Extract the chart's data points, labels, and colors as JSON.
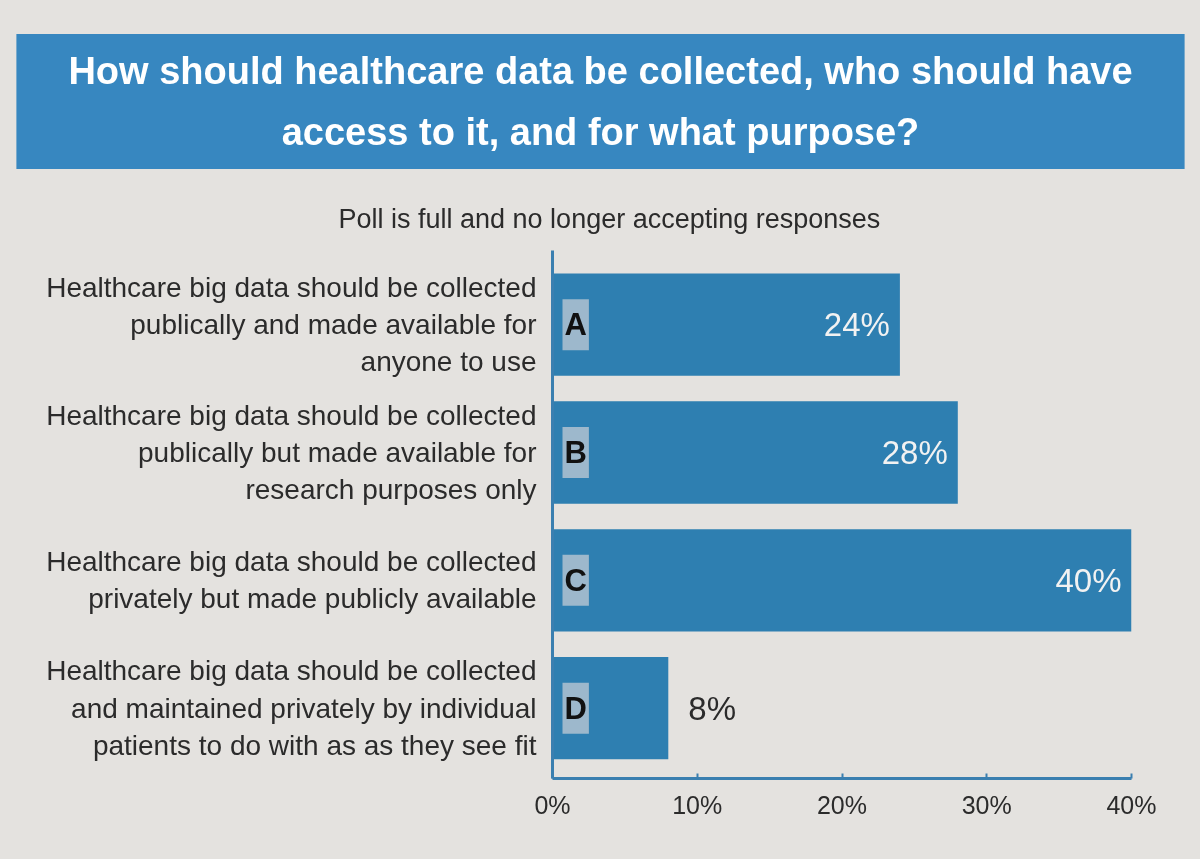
{
  "chart_data": {
    "type": "bar",
    "orientation": "horizontal",
    "title": "How should healthcare data be collected, who should have access to it, and for what purpose?",
    "subtitle": "Poll is full and no longer accepting responses",
    "categories": [
      "Healthcare big data should be collected publically and made available for anyone to use",
      "Healthcare big data should be collected publically but made available for research purposes only",
      "Healthcare big data should be collected privately but made publicly available",
      "Healthcare big data should be collected and maintained privately by individual patients to do with as as they see fit"
    ],
    "values": [
      24,
      28,
      40,
      8
    ],
    "color": "#2e7fb1",
    "value_labels": [
      "24%",
      "28%",
      "40%",
      "8%"
    ],
    "xlim": [
      0,
      40
    ],
    "xticks": [
      {
        "value": 0,
        "label": "0%"
      },
      {
        "value": 10,
        "label": "10%"
      },
      {
        "value": 20,
        "label": "20%"
      },
      {
        "value": 30,
        "label": "30%"
      },
      {
        "value": 40,
        "label": "40%"
      }
    ],
    "annotations": [
      "A",
      "B",
      "C",
      "D"
    ]
  }
}
